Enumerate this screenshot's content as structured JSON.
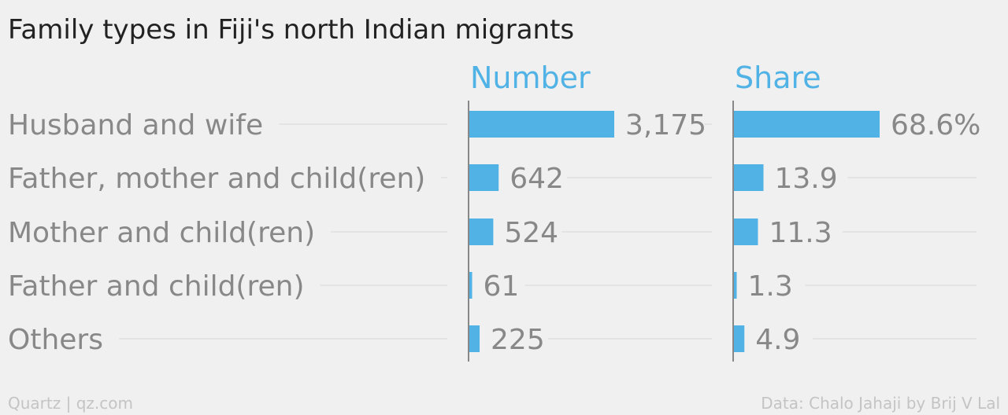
{
  "colors": {
    "background": "#f0f0f0",
    "bar": "#51b2e5",
    "header": "#51b2e5",
    "title": "#222222",
    "label": "#888888",
    "footer": "#c4c4c4",
    "guide": "#e4e4e4"
  },
  "chart_data": {
    "type": "bar",
    "orientation": "horizontal",
    "title": "Family types in Fiji's north Indian migrants",
    "categories": [
      "Husband and wife",
      "Father, mother and child(ren)",
      "Mother and child(ren)",
      "Father and child(ren)",
      "Others"
    ],
    "series": [
      {
        "name": "Number",
        "values": [
          3175,
          642,
          524,
          61,
          225
        ],
        "labels": [
          "3,175",
          "642",
          "524",
          "61",
          "225"
        ],
        "xlim": [
          0,
          3175
        ]
      },
      {
        "name": "Share",
        "values": [
          68.6,
          13.9,
          11.3,
          1.3,
          4.9
        ],
        "labels": [
          "68.6%",
          "13.9",
          "11.3",
          "1.3",
          "4.9"
        ],
        "xlim": [
          0,
          68.6
        ]
      }
    ],
    "grid": false,
    "legend": "none"
  },
  "footer": {
    "left": "Quartz | qz.com",
    "right": "Data: Chalo Jahaji by Brij V Lal"
  }
}
